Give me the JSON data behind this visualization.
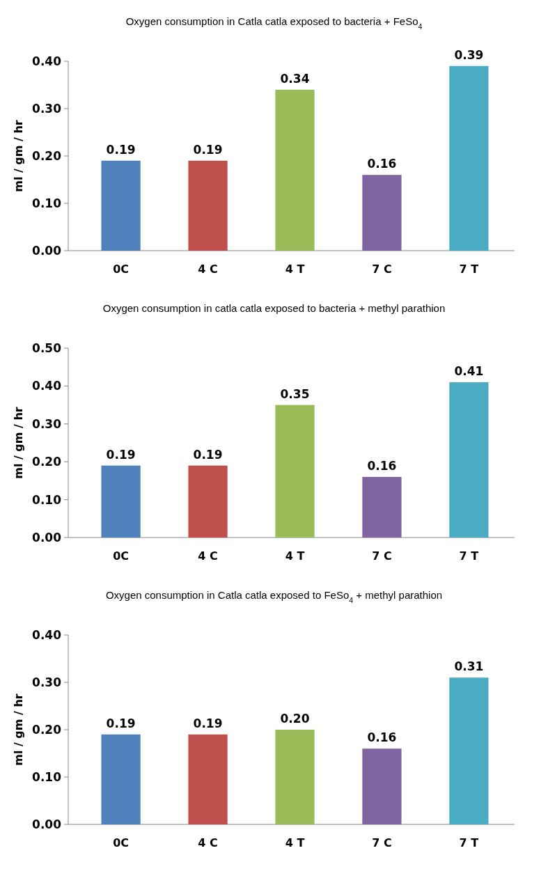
{
  "chart_data": [
    {
      "type": "bar",
      "title": "Oxygen consumption in Catla catla exposed to bacteria + FeSo$_{4}$",
      "ylabel": "ml / gm / hr",
      "categories": [
        "0C",
        "4 C",
        "4 T",
        "7 C",
        "7 T"
      ],
      "values": [
        0.19,
        0.19,
        0.34,
        0.16,
        0.39
      ],
      "colors": [
        "#4f81bd",
        "#c0504d",
        "#9bbb59",
        "#8064a2",
        "#4bacc6"
      ],
      "ylim": [
        0,
        0.4
      ],
      "yticks": [
        {
          "value": 0,
          "label": "0.00"
        },
        {
          "value": 0.1,
          "label": "0.10"
        },
        {
          "value": 0.2,
          "label": "0.20"
        },
        {
          "value": 0.3,
          "label": "0.30"
        },
        {
          "value": 0.4,
          "label": "0.40"
        }
      ],
      "data_labels": true
    },
    {
      "type": "bar",
      "title": "Oxygen consumption in catla catla exposed to bacteria + methyl parathion",
      "ylabel": "ml / gm / hr",
      "categories": [
        "0C",
        "4 C",
        "4 T",
        "7 C",
        "7 T"
      ],
      "values": [
        0.19,
        0.19,
        0.35,
        0.16,
        0.41
      ],
      "colors": [
        "#4f81bd",
        "#c0504d",
        "#9bbb59",
        "#8064a2",
        "#4bacc6"
      ],
      "ylim": [
        0,
        0.5
      ],
      "yticks": [
        {
          "value": 0,
          "label": "0.00"
        },
        {
          "value": 0.1,
          "label": "0.10"
        },
        {
          "value": 0.2,
          "label": "0.20"
        },
        {
          "value": 0.3,
          "label": "0.30"
        },
        {
          "value": 0.4,
          "label": "0.40"
        },
        {
          "value": 0.5,
          "label": "0.50"
        }
      ],
      "data_labels": true
    },
    {
      "type": "bar",
      "title": "Oxygen consumption in Catla catla exposed to FeSo$_{4}$ + methyl parathion",
      "ylabel": "ml / gm / hr",
      "categories": [
        "0C",
        "4 C",
        "4 T",
        "7 C",
        "7 T"
      ],
      "values": [
        0.19,
        0.19,
        0.2,
        0.16,
        0.31
      ],
      "value_labels": [
        "0.19",
        "0.19",
        "0.20",
        "0.16",
        "0.31"
      ],
      "colors": [
        "#4f81bd",
        "#c0504d",
        "#9bbb59",
        "#8064a2",
        "#4bacc6"
      ],
      "ylim": [
        0,
        0.4
      ],
      "yticks": [
        {
          "value": 0,
          "label": "0.00"
        },
        {
          "value": 0.1,
          "label": "0.10"
        },
        {
          "value": 0.2,
          "label": "0.20"
        },
        {
          "value": 0.3,
          "label": "0.30"
        },
        {
          "value": 0.4,
          "label": "0.40"
        }
      ]
    }
  ]
}
